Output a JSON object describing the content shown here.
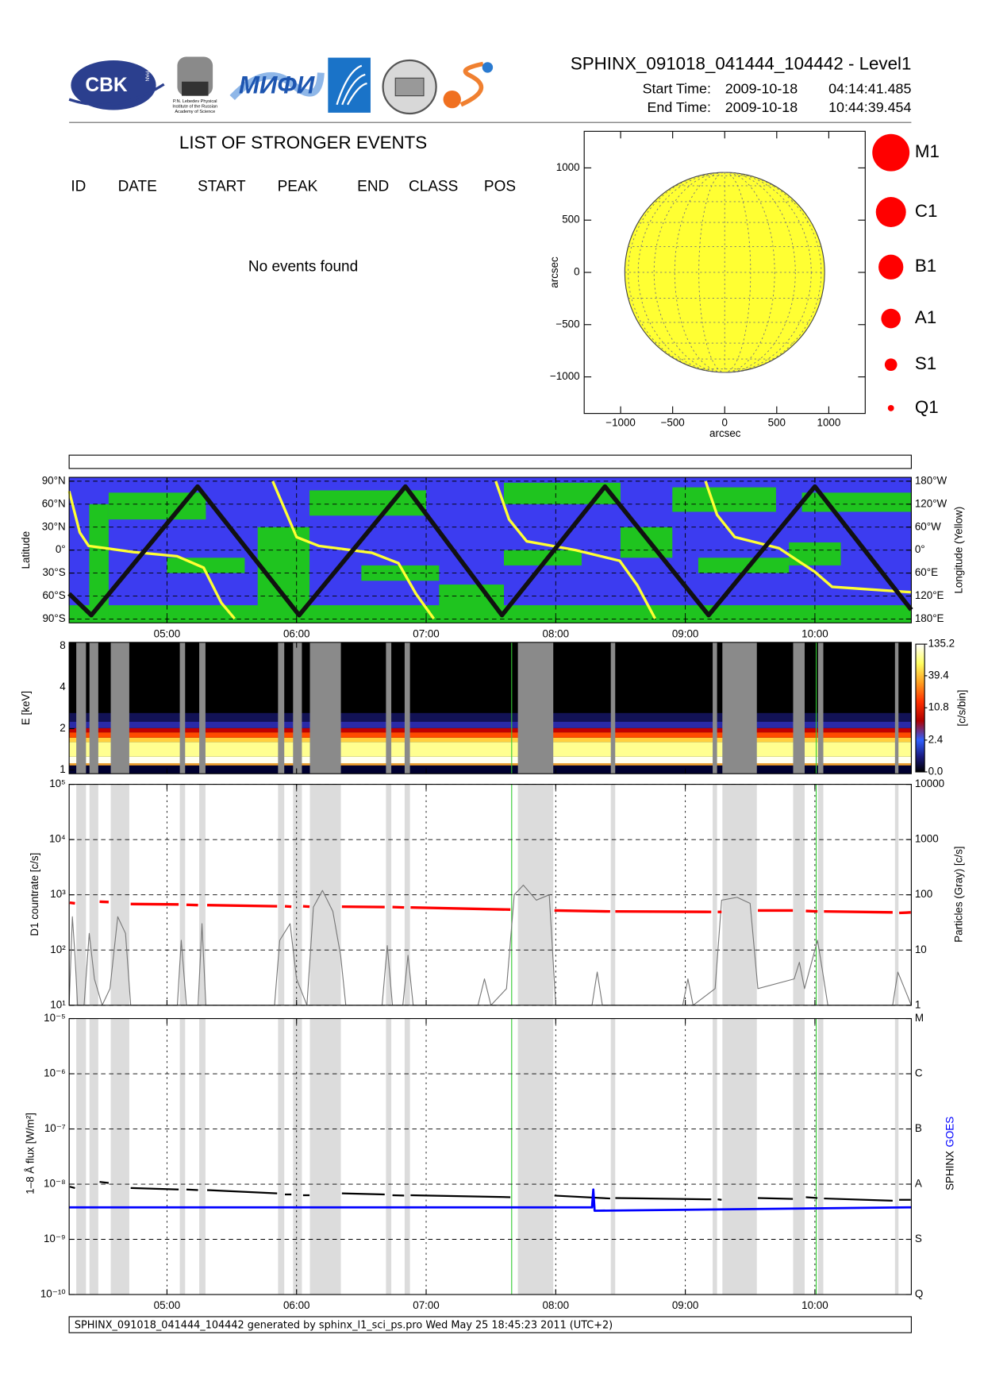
{
  "header": {
    "title": "SPHINX_091018_041444_104442 - Level1",
    "start_label": "Start Time:",
    "start_date": "2009-10-18",
    "start_time": "04:14:41.485",
    "end_label": "End Time:",
    "end_date": "2009-10-18",
    "end_time": "10:44:39.454",
    "logo_cbk": "CBK",
    "logo_pan": "PAN",
    "lebedev_lines": [
      "P.N. Lebedev Physical",
      "Institute of the Russian",
      "Academy of Science"
    ],
    "logo_mifi": "МИФИ"
  },
  "events": {
    "title": "LIST OF STRONGER EVENTS",
    "columns": [
      "ID",
      "DATE",
      "START",
      "PEAK",
      "END",
      "CLASS",
      "POS"
    ],
    "message": "No events found"
  },
  "footer": "SPHINX_091018_041444_104442 generated by sphinx_l1_sci_ps.pro Wed May 25 18:45:23 2011 (UTC+2)",
  "chart_data": [
    {
      "type": "disk",
      "xlabel": "arcsec",
      "ylabel": "arcsec",
      "xlim": [
        -1350,
        1350
      ],
      "ylim": [
        -1350,
        1350
      ],
      "xticks": [
        {
          "value": -1000,
          "label": "−1000"
        },
        {
          "value": -500,
          "label": "−500"
        },
        0,
        500,
        1000
      ],
      "yticks": [
        {
          "value": -1000,
          "label": "−1000"
        },
        {
          "value": -500,
          "label": "−500"
        },
        0,
        500,
        1000
      ],
      "disk_radius": 960,
      "color": "#ffff33",
      "classes": [
        "M1",
        "C1",
        "B1",
        "A1",
        "S1",
        "Q1"
      ],
      "class_color": "#ff0000"
    },
    {
      "type": "map",
      "ylabel": "Latitude",
      "y2label": "Longitude (Yellow)",
      "xlim": [
        4.245,
        10.744
      ],
      "xticks": [
        {
          "value": 5,
          "label": "05:00"
        },
        {
          "value": 6,
          "label": "06:00"
        },
        {
          "value": 7,
          "label": "07:00"
        },
        {
          "value": 8,
          "label": "08:00"
        },
        {
          "value": 9,
          "label": "09:00"
        },
        {
          "value": 10,
          "label": "10:00"
        }
      ],
      "xtick_labels": true,
      "ylim": [
        -95,
        95
      ],
      "yticks": [
        {
          "value": 90,
          "label": "90°N"
        },
        {
          "value": 60,
          "label": "60°N"
        },
        {
          "value": 30,
          "label": "30°N"
        },
        {
          "value": 0,
          "label": "0°"
        },
        {
          "value": -30,
          "label": "30°S"
        },
        {
          "value": -60,
          "label": "60°S"
        },
        {
          "value": -90,
          "label": "90°S"
        }
      ],
      "y2lim": [
        -190,
        190
      ],
      "y2ticks": [
        {
          "value": 180,
          "label": "180°W"
        },
        {
          "value": 120,
          "label": "120°W"
        },
        {
          "value": 60,
          "label": "60°W"
        },
        {
          "value": 0,
          "label": "0°"
        },
        {
          "value": -60,
          "label": "60°E"
        },
        {
          "value": -120,
          "label": "120°E"
        },
        {
          "value": -180,
          "label": "180°E"
        }
      ],
      "grid": true,
      "background": "#3c3cf0",
      "region_color": "#1fc41f",
      "regions": [
        [
          4.245,
          10.744,
          -95,
          -72
        ],
        [
          4.4,
          4.55,
          -90,
          60
        ],
        [
          4.55,
          5.3,
          40,
          75
        ],
        [
          5.0,
          5.6,
          -30,
          -10
        ],
        [
          5.7,
          6.1,
          -90,
          30
        ],
        [
          6.1,
          7.0,
          45,
          78
        ],
        [
          6.5,
          7.1,
          -40,
          -20
        ],
        [
          7.1,
          7.6,
          -90,
          -45
        ],
        [
          7.6,
          8.5,
          60,
          88
        ],
        [
          7.6,
          8.2,
          -20,
          0
        ],
        [
          8.5,
          8.9,
          -10,
          30
        ],
        [
          8.9,
          9.7,
          50,
          82
        ],
        [
          9.1,
          9.8,
          -30,
          -10
        ],
        [
          9.9,
          10.744,
          50,
          75
        ],
        [
          9.8,
          10.2,
          -20,
          10
        ]
      ],
      "series": [
        {
          "color": "#111111",
          "x": [
            4.245,
            4.416,
            5.236,
            6.02,
            6.84,
            7.585,
            8.38,
            9.18,
            10.0,
            10.744
          ],
          "values": [
            -57,
            -85,
            83,
            -85,
            83,
            -85,
            83,
            -85,
            83,
            -78
          ]
        },
        {
          "color": "#ffff33",
          "axis": "y2",
          "x": [
            4.245,
            4.327,
            4.395,
            4.737,
            5.078,
            5.283,
            5.42,
            5.522,
            5.66,
            5.816,
            5.898,
            6.0,
            6.171,
            6.581,
            6.786,
            6.923,
            7.059,
            7.3,
            7.537,
            7.64,
            7.776,
            8.152,
            8.494,
            8.63,
            8.767,
            9.0,
            9.156,
            9.245,
            9.382,
            9.723,
            10.0,
            10.133,
            10.744
          ],
          "values": [
            154,
            46,
            11,
            -5,
            -16,
            -46,
            -138,
            -179,
            null,
            180,
            115,
            34,
            11,
            -7,
            -34,
            -115,
            -179,
            null,
            180,
            80,
            23,
            0,
            -28,
            -92,
            -179,
            null,
            180,
            92,
            34,
            5,
            -57,
            -96,
            -110
          ]
        }
      ]
    },
    {
      "type": "spectrogram",
      "ylabel": "E [keV]",
      "colorbar_label": "[c/s/bin]",
      "xlim": [
        4.245,
        10.744
      ],
      "xticks": [
        {
          "value": 5,
          "label": "05:00"
        },
        {
          "value": 6,
          "label": "06:00"
        },
        {
          "value": 7,
          "label": "07:00"
        },
        {
          "value": 8,
          "label": "08:00"
        },
        {
          "value": 9,
          "label": "09:00"
        },
        {
          "value": 10,
          "label": "10:00"
        }
      ],
      "ylim": [
        0.94,
        8.5
      ],
      "yscale": "log",
      "yticks": [
        1,
        2,
        4,
        8
      ],
      "clim": [
        0,
        135.2
      ],
      "colorbar_ticks": [
        135.2,
        39.4,
        10.8,
        2.4,
        {
          "value": 0,
          "label": "0.0"
        }
      ],
      "bands": [
        [
          0.94,
          1.08,
          "#000030"
        ],
        [
          1.08,
          1.12,
          "#f0a030"
        ],
        [
          1.12,
          1.25,
          "#fffff0"
        ],
        [
          1.25,
          1.6,
          "#ffff90"
        ],
        [
          1.6,
          1.72,
          "#ffd040"
        ],
        [
          1.72,
          1.88,
          "#ff4a00"
        ],
        [
          1.88,
          2.02,
          "#c00000"
        ],
        [
          2.02,
          2.25,
          "#2a2aa8"
        ],
        [
          2.25,
          2.6,
          "#121255"
        ]
      ],
      "gap_color": "#8a8a8a",
      "gaps": [
        [
          4.3,
          4.375
        ],
        [
          4.402,
          4.47
        ],
        [
          4.566,
          4.709
        ],
        [
          5.099,
          5.14
        ],
        [
          5.249,
          5.297
        ],
        [
          5.857,
          5.905
        ],
        [
          5.973,
          6.041
        ],
        [
          6.103,
          6.342
        ],
        [
          6.69,
          6.731
        ],
        [
          6.834,
          6.875
        ],
        [
          7.708,
          7.981
        ],
        [
          8.425,
          8.459
        ],
        [
          9.211,
          9.245
        ],
        [
          9.286,
          9.552
        ],
        [
          9.832,
          9.921
        ],
        [
          10.024,
          10.065
        ],
        [
          10.618,
          10.645
        ]
      ],
      "marker_lines": [
        7.66,
        10.01
      ],
      "marker_color": "#33cc33"
    },
    {
      "type": "line",
      "ylabel": "D1 countrate [c/s]",
      "y2label": "Particles (Gray) [c/s]",
      "xlim": [
        4.245,
        10.744
      ],
      "xticks": [
        {
          "value": 5,
          "label": "05:00"
        },
        {
          "value": 6,
          "label": "06:00"
        },
        {
          "value": 7,
          "label": "07:00"
        },
        {
          "value": 8,
          "label": "08:00"
        },
        {
          "value": 9,
          "label": "09:00"
        },
        {
          "value": 10,
          "label": "10:00"
        }
      ],
      "ylim": [
        10,
        100000
      ],
      "yscale": "log",
      "yticks": [
        {
          "value": 10,
          "label": "10¹"
        },
        {
          "value": 100,
          "label": "10²"
        },
        {
          "value": 1000,
          "label": "10³"
        },
        {
          "value": 10000,
          "label": "10⁴"
        },
        {
          "value": 100000,
          "label": "10⁵"
        }
      ],
      "y2lim": [
        1,
        10000
      ],
      "y2scale": "log",
      "y2ticks": [
        1,
        10,
        100,
        1000,
        10000
      ],
      "grid": true,
      "shade_color": "#dcdcdc",
      "series": [
        {
          "color": "#ff0000",
          "x": [
            4.25,
            4.29,
            4.31,
            4.48,
            4.55,
            4.6,
            4.72,
            5.09,
            5.12,
            5.15,
            5.24,
            5.27,
            5.31,
            5.85,
            5.88,
            5.91,
            5.96,
            6.0,
            6.05,
            6.1,
            6.2,
            6.35,
            6.68,
            6.7,
            6.74,
            6.83,
            6.85,
            6.88,
            7.65,
            7.68,
            7.99,
            8.42,
            8.44,
            8.46,
            9.2,
            9.23,
            9.25,
            9.28,
            9.4,
            9.56,
            9.83,
            9.87,
            9.93,
            10.02,
            10.04,
            10.07,
            10.6,
            10.63,
            10.65,
            10.74
          ],
          "values": [
            720,
            700,
            null,
            750,
            740,
            null,
            680,
            670,
            null,
            660,
            650,
            null,
            650,
            620,
            null,
            620,
            610,
            null,
            620,
            610,
            null,
            610,
            600,
            null,
            600,
            590,
            null,
            590,
            540,
            null,
            520,
            500,
            null,
            500,
            490,
            null,
            490,
            490,
            null,
            520,
            520,
            null,
            510,
            500,
            null,
            500,
            480,
            null,
            470,
            480
          ]
        },
        {
          "color": "#777777",
          "axis": "y2",
          "x": [
            4.245,
            4.27,
            4.29,
            4.31,
            4.36,
            4.4,
            4.44,
            4.5,
            4.56,
            4.62,
            4.68,
            4.72,
            5.08,
            5.11,
            5.15,
            5.24,
            5.27,
            5.3,
            5.83,
            5.87,
            5.95,
            6.0,
            6.08,
            6.13,
            6.2,
            6.28,
            6.34,
            6.38,
            6.66,
            6.7,
            6.74,
            6.82,
            6.86,
            6.9,
            7.4,
            7.45,
            7.5,
            7.62,
            7.68,
            7.75,
            7.85,
            7.95,
            8.0,
            8.28,
            8.32,
            8.36,
            8.98,
            9.02,
            9.06,
            9.23,
            9.28,
            9.4,
            9.5,
            9.56,
            9.84,
            9.88,
            9.92,
            10.02,
            10.06,
            10.1,
            10.6,
            10.64,
            10.744
          ],
          "values": [
            1,
            40,
            8,
            1,
            1,
            20,
            3,
            1,
            2,
            40,
            20,
            1,
            1,
            15,
            1,
            1,
            30,
            1,
            1,
            15,
            30,
            3,
            1,
            60,
            120,
            50,
            8,
            1,
            1,
            12,
            1,
            1,
            8,
            1,
            1,
            3,
            1,
            2,
            100,
            150,
            80,
            100,
            1,
            1,
            4,
            1,
            1,
            3,
            1,
            2,
            80,
            90,
            70,
            2,
            3,
            6,
            2,
            15,
            4,
            1,
            1,
            4,
            1
          ]
        }
      ]
    },
    {
      "type": "line",
      "ylabel": "1–8 Å flux [W/m²]",
      "y2label_parts": [
        "SPHINX",
        "GOES"
      ],
      "xlim": [
        4.245,
        10.744
      ],
      "xticks": [
        {
          "value": 5,
          "label": "05:00"
        },
        {
          "value": 6,
          "label": "06:00"
        },
        {
          "value": 7,
          "label": "07:00"
        },
        {
          "value": 8,
          "label": "08:00"
        },
        {
          "value": 9,
          "label": "09:00"
        },
        {
          "value": 10,
          "label": "10:00"
        }
      ],
      "xtick_labels": true,
      "ylim": [
        1e-10,
        1e-05
      ],
      "yscale": "log",
      "yticks": [
        {
          "value": 1e-10,
          "label": "10⁻¹⁰"
        },
        {
          "value": 1e-09,
          "label": "10⁻⁹"
        },
        {
          "value": 1e-08,
          "label": "10⁻⁸"
        },
        {
          "value": 1e-07,
          "label": "10⁻⁷"
        },
        {
          "value": 1e-06,
          "label": "10⁻⁶"
        },
        {
          "value": 1e-05,
          "label": "10⁻⁵"
        }
      ],
      "y2lim": [
        1e-10,
        1e-05
      ],
      "y2scale": "log",
      "y2ticks": [
        {
          "value": 1e-10,
          "label": "Q"
        },
        {
          "value": 1e-09,
          "label": "S"
        },
        {
          "value": 1e-08,
          "label": "A"
        },
        {
          "value": 1e-07,
          "label": "B"
        },
        {
          "value": 1e-06,
          "label": "C"
        },
        {
          "value": 1e-05,
          "label": "M"
        }
      ],
      "grid": true,
      "shade_color": "#dcdcdc",
      "series": [
        {
          "color": "#000000",
          "x": [
            4.25,
            4.29,
            4.31,
            4.48,
            4.55,
            4.6,
            4.72,
            5.09,
            5.12,
            5.15,
            5.24,
            5.27,
            5.31,
            5.85,
            5.88,
            5.91,
            5.96,
            6.0,
            6.05,
            6.1,
            6.2,
            6.35,
            6.68,
            6.7,
            6.74,
            6.83,
            6.85,
            6.88,
            7.65,
            7.68,
            7.99,
            8.42,
            8.44,
            8.46,
            9.2,
            9.23,
            9.25,
            9.28,
            9.4,
            9.56,
            9.83,
            9.87,
            9.93,
            10.02,
            10.04,
            10.07,
            10.6,
            10.63,
            10.65,
            10.74
          ],
          "values": [
            9e-09,
            8.5e-09,
            null,
            1.1e-08,
            1.05e-08,
            null,
            8.5e-09,
            8e-09,
            null,
            8e-09,
            7.8e-09,
            null,
            7.8e-09,
            6.8e-09,
            null,
            6.5e-09,
            6.5e-09,
            null,
            6.3e-09,
            6.3e-09,
            null,
            6.8e-09,
            6.5e-09,
            null,
            6.3e-09,
            6.2e-09,
            null,
            6.3e-09,
            5.8e-09,
            null,
            6.2e-09,
            5.5e-09,
            null,
            5.6e-09,
            5.3e-09,
            null,
            5.3e-09,
            5.2e-09,
            null,
            5.6e-09,
            5.4e-09,
            null,
            5.8e-09,
            5.6e-09,
            null,
            5.5e-09,
            5e-09,
            null,
            5.2e-09,
            5.2e-09
          ]
        },
        {
          "color": "#0000ff",
          "x": [
            4.245,
            8.28,
            8.29,
            8.3,
            10.744
          ],
          "values": [
            3.8e-09,
            3.8e-09,
            8e-09,
            3.3e-09,
            3.8e-09
          ]
        }
      ]
    }
  ]
}
